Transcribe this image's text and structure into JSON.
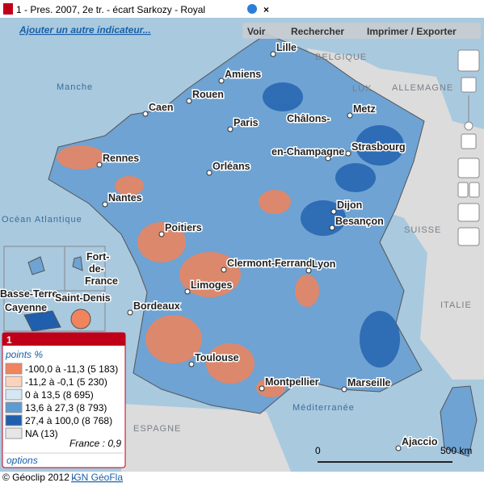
{
  "header": {
    "title": "1 - Pres. 2007, 2e tr. - écart Sarkozy - Royal",
    "add_indicator": "Ajouter un autre indicateur..."
  },
  "toolbar": [
    "Voir",
    "Rechercher",
    "Imprimer / Exporter"
  ],
  "map": {
    "cities": [
      "Lille",
      "Amiens",
      "Rouen",
      "Caen",
      "Paris",
      "Metz",
      "Châlons-",
      "en-Champagne",
      "Strasbourg",
      "Rennes",
      "Orléans",
      "Nantes",
      "Dijon",
      "Besançon",
      "Poitiers",
      "Clermont-Ferrand",
      "Lyon",
      "Limoges",
      "Bordeaux",
      "Toulouse",
      "Montpellier",
      "Marseille",
      "Ajaccio"
    ],
    "regions": [
      "BELGIQUE",
      "ALLEMAGNE",
      "LUX",
      "Manche",
      "Océan Atlantique",
      "SUISSE",
      "ITALIE",
      "ESPAGNE",
      "Méditerranée"
    ],
    "insets": [
      "Fort-",
      "de-",
      "France",
      "Basse-Terre",
      "Cayenne",
      "Saint-Denis"
    ]
  },
  "legend": {
    "id": "1",
    "unit": "points %",
    "classes": [
      {
        "label": "-100,0 à -11,3 (5 183)",
        "color": "#f0845c"
      },
      {
        "label": "-11,2 à -0,1 (5 230)",
        "color": "#fbd3bd"
      },
      {
        "label": "0 à 13,5 (8 695)",
        "color": "#d6e6f2"
      },
      {
        "label": "13,6 à 27,3 (8 793)",
        "color": "#5d9bd0"
      },
      {
        "label": "27,4 à 100,0 (8 768)",
        "color": "#1f5fae"
      }
    ],
    "na": {
      "label": "NA (13)",
      "color": "#e6e6e6"
    },
    "note": "France : 0,9",
    "options": "options"
  },
  "scale": [
    "0",
    "500 km"
  ],
  "footer": {
    "copyright": "© Géoclip 2012 - ",
    "link": "IGN GéoFla"
  }
}
